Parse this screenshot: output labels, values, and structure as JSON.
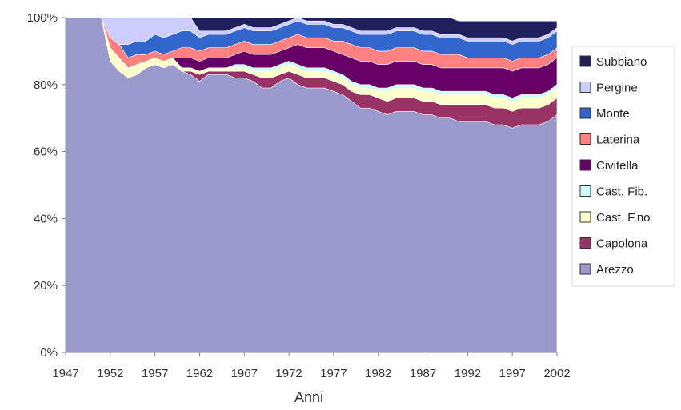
{
  "chart_data": {
    "type": "area",
    "stacked": true,
    "normalized": true,
    "xlabel": "Anni",
    "ylabel": "",
    "title": "",
    "xlim": [
      1947,
      2002
    ],
    "ylim": [
      0,
      100
    ],
    "x_ticks": [
      1947,
      1952,
      1957,
      1962,
      1967,
      1972,
      1977,
      1982,
      1987,
      1992,
      1997,
      2002
    ],
    "x_tick_labels": [
      "1947",
      "1952",
      "1957",
      "1962",
      "1967",
      "1972",
      "1977",
      "1982",
      "1987",
      "1992",
      "1997",
      "2002"
    ],
    "y_ticks": [
      0,
      20,
      40,
      60,
      80,
      100
    ],
    "y_tick_labels": [
      "0%",
      "20%",
      "40%",
      "60%",
      "80%",
      "100%"
    ],
    "legend_position": "right",
    "x": [
      1947,
      1951,
      1952,
      1953,
      1954,
      1955,
      1956,
      1957,
      1958,
      1959,
      1960,
      1961,
      1962,
      1963,
      1964,
      1965,
      1966,
      1967,
      1968,
      1969,
      1970,
      1971,
      1972,
      1973,
      1974,
      1975,
      1976,
      1977,
      1978,
      1979,
      1980,
      1981,
      1982,
      1983,
      1984,
      1985,
      1986,
      1987,
      1988,
      1989,
      1990,
      1991,
      1992,
      1993,
      1994,
      1995,
      1996,
      1997,
      1998,
      1999,
      2000,
      2001,
      2002
    ],
    "series": [
      {
        "name": "Arezzo",
        "color": "#9999CC",
        "values": [
          100,
          100,
          87,
          84,
          82,
          83,
          85,
          86,
          85,
          86,
          84,
          83,
          81,
          83,
          83,
          83,
          82,
          82,
          81,
          79,
          79,
          81,
          82,
          80,
          79,
          79,
          79,
          78,
          77,
          75,
          73,
          73,
          72,
          71,
          72,
          72,
          72,
          71,
          71,
          70,
          70,
          69,
          69,
          69,
          69,
          68,
          68,
          67,
          68,
          68,
          68,
          69,
          71
        ]
      },
      {
        "name": "Capolona",
        "color": "#993366",
        "values": [
          0,
          0,
          0,
          0,
          0,
          0,
          0,
          0,
          0,
          0,
          0,
          1,
          2,
          1,
          1,
          1,
          2,
          2,
          2,
          3,
          3,
          2,
          2,
          3,
          3,
          3,
          3,
          3,
          3,
          3,
          4,
          4,
          4,
          4,
          4,
          4,
          4,
          4,
          4,
          4,
          4,
          5,
          5,
          5,
          5,
          5,
          5,
          5,
          5,
          5,
          5,
          5,
          5
        ]
      },
      {
        "name": "Cast. F.no",
        "color": "#FFFFCC",
        "values": [
          0,
          0,
          4,
          4,
          3,
          3,
          2,
          2,
          2,
          2,
          1,
          1,
          1,
          1,
          1,
          1,
          1,
          1,
          1,
          2,
          2,
          2,
          2,
          2,
          2,
          2,
          2,
          2,
          2,
          2,
          2,
          2,
          2,
          3,
          3,
          3,
          3,
          3,
          3,
          3,
          3,
          3,
          3,
          3,
          3,
          3,
          3,
          3,
          3,
          3,
          3,
          3,
          3
        ]
      },
      {
        "name": "Cast. Fib.",
        "color": "#CCFFFF",
        "values": [
          0,
          0,
          0,
          0,
          0,
          0,
          0,
          0,
          0,
          0,
          0,
          0,
          0,
          0,
          0,
          0,
          1,
          1,
          1,
          1,
          1,
          1,
          1,
          1,
          1,
          1,
          1,
          1,
          1,
          1,
          1,
          1,
          1,
          1,
          1,
          1,
          1,
          1,
          1,
          1,
          1,
          1,
          1,
          1,
          1,
          1,
          1,
          1,
          1,
          1,
          1,
          1,
          1
        ]
      },
      {
        "name": "Civitella",
        "color": "#660066",
        "values": [
          0,
          0,
          0,
          0,
          0,
          0,
          0,
          0,
          0,
          0,
          3,
          3,
          3,
          3,
          3,
          3,
          3,
          4,
          4,
          4,
          4,
          4,
          4,
          6,
          6,
          6,
          6,
          6,
          6,
          7,
          7,
          7,
          7,
          7,
          7,
          7,
          7,
          7,
          7,
          7,
          7,
          7,
          7,
          7,
          7,
          8,
          8,
          8,
          8,
          8,
          8,
          8,
          8
        ]
      },
      {
        "name": "Laterina",
        "color": "#FF8080",
        "values": [
          0,
          0,
          3,
          4,
          3,
          3,
          2,
          2,
          2,
          2,
          3,
          3,
          3,
          3,
          3,
          3,
          3,
          3,
          3,
          3,
          3,
          3,
          3,
          3,
          3,
          3,
          3,
          3,
          4,
          4,
          4,
          4,
          4,
          4,
          4,
          4,
          4,
          4,
          4,
          4,
          4,
          4,
          3,
          3,
          3,
          3,
          3,
          3,
          3,
          3,
          3,
          3,
          3
        ]
      },
      {
        "name": "Monte",
        "color": "#3366CC",
        "values": [
          0,
          0,
          0,
          0,
          4,
          4,
          4,
          5,
          5,
          5,
          5,
          5,
          4,
          4,
          4,
          4,
          4,
          4,
          4,
          4,
          4,
          4,
          4,
          4,
          4,
          4,
          4,
          4,
          4,
          4,
          4,
          4,
          5,
          5,
          5,
          5,
          5,
          5,
          5,
          5,
          5,
          5,
          5,
          5,
          5,
          5,
          5,
          5,
          5,
          5,
          5,
          5,
          5
        ]
      },
      {
        "name": "Pergine",
        "color": "#CCCCFF",
        "values": [
          0,
          0,
          6,
          8,
          8,
          7,
          7,
          5,
          6,
          5,
          4,
          4,
          2,
          1,
          1,
          1,
          1,
          1,
          1,
          1,
          1,
          1,
          1,
          1,
          1,
          1,
          1,
          1,
          1,
          1,
          1,
          1,
          1,
          1,
          1,
          1,
          1,
          1,
          1,
          1,
          1,
          1,
          1,
          1,
          1,
          1,
          1,
          1,
          1,
          1,
          1,
          1,
          1
        ]
      },
      {
        "name": "Subbiano",
        "color": "#1F1F5C",
        "values": [
          0,
          0,
          0,
          0,
          0,
          0,
          0,
          0,
          0,
          0,
          0,
          0,
          4,
          4,
          4,
          4,
          3,
          2,
          3,
          3,
          3,
          2,
          1,
          0,
          1,
          1,
          1,
          2,
          2,
          3,
          4,
          4,
          4,
          4,
          3,
          3,
          3,
          4,
          4,
          5,
          5,
          4,
          5,
          5,
          5,
          5,
          5,
          6,
          5,
          5,
          5,
          4,
          2
        ]
      }
    ]
  }
}
